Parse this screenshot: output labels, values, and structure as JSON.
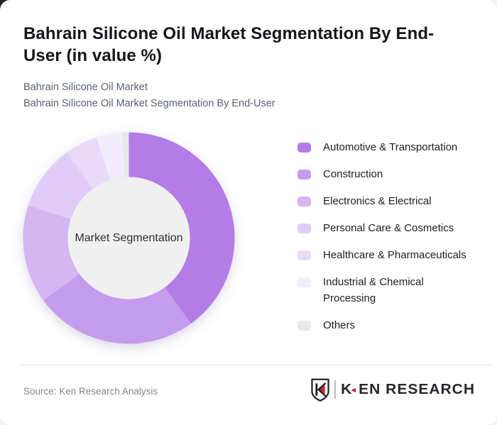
{
  "card": {
    "title_full": "Bahrain Silicone Oil Market Segmentation By End-User (in value %)",
    "title_line1": "Bahrain Silicone Oil Market Segmentation By End-",
    "title_line2": "User (in value %)",
    "subtitle_line1": "Bahrain Silicone Oil Market",
    "subtitle_line2": "Bahrain Silicone Oil Market Segmentation By End-User"
  },
  "footer": {
    "source": "Source: Ken Research Analysis",
    "logo_letter": "K",
    "logo_text_rest": "EN RESEARCH",
    "logo_brand": "KEN RESEARCH",
    "logo_accent_color": "#c5232b",
    "logo_text_color": "#25262b"
  },
  "chart_data": {
    "type": "pie",
    "donut": true,
    "title": "Bahrain Silicone Oil Market Segmentation By End-User (in value %)",
    "center_label": "Market Segmentation",
    "legend_position": "right",
    "unit": "value %",
    "start_angle_deg": 0,
    "inner_circle_color": "#f0f0f0",
    "outer_radius_px": 149,
    "inner_radius_px": 86,
    "segments": [
      {
        "label": "Automotive & Transportation",
        "value": 40,
        "color": "#b37ce6"
      },
      {
        "label": "Construction",
        "value": 25,
        "color": "#c49bed"
      },
      {
        "label": "Electronics & Electrical",
        "value": 15,
        "color": "#d6b5f3"
      },
      {
        "label": "Personal Care & Cosmetics",
        "value": 10,
        "color": "#e1ccf7"
      },
      {
        "label": "Healthcare & Pharmaceuticals",
        "value": 5,
        "color": "#e9d9fa"
      },
      {
        "label": "Industrial & Chemical Processing",
        "value": 4,
        "color": "#f3ecfc"
      },
      {
        "label": "Others",
        "value": 1,
        "color": "#e8e8ea"
      }
    ]
  }
}
